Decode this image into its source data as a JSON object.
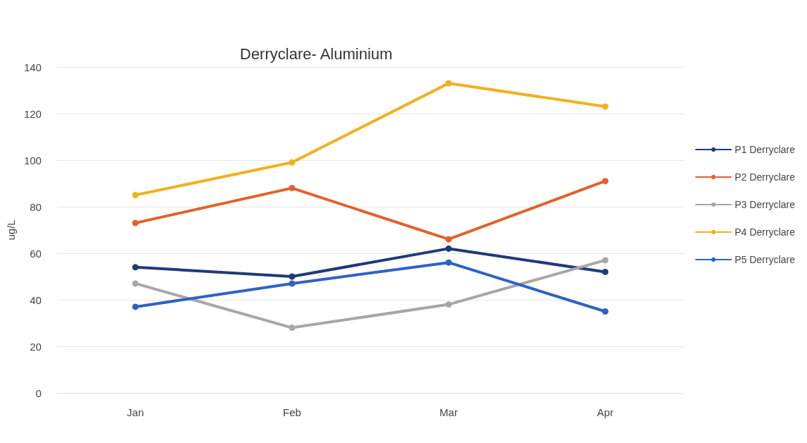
{
  "chart_data": {
    "type": "line",
    "title": "Derryclare- Aluminium",
    "ylabel": "ug/L",
    "categories": [
      "Jan",
      "Feb",
      "Mar",
      "Apr"
    ],
    "series": [
      {
        "name": "P1 Derryclare",
        "color": "#1f3a7a",
        "values": [
          54,
          50,
          62,
          52
        ]
      },
      {
        "name": "P2 Derryclare",
        "color": "#e0622a",
        "values": [
          73,
          88,
          66,
          91
        ]
      },
      {
        "name": "P3 Derryclare",
        "color": "#a9a5ab",
        "values": [
          47,
          28,
          38,
          57
        ]
      },
      {
        "name": "P4 Derryclare",
        "color": "#f2b01e",
        "values": [
          85,
          99,
          133,
          123
        ]
      },
      {
        "name": "P5 Derryclare",
        "color": "#2e63c4",
        "values": [
          37,
          47,
          56,
          35
        ]
      }
    ],
    "ylim": [
      0,
      140
    ],
    "yticks": [
      0,
      20,
      40,
      60,
      80,
      100,
      120,
      140
    ],
    "grid": "y",
    "legend": "right",
    "marker": "circle",
    "line_style": "solid"
  }
}
